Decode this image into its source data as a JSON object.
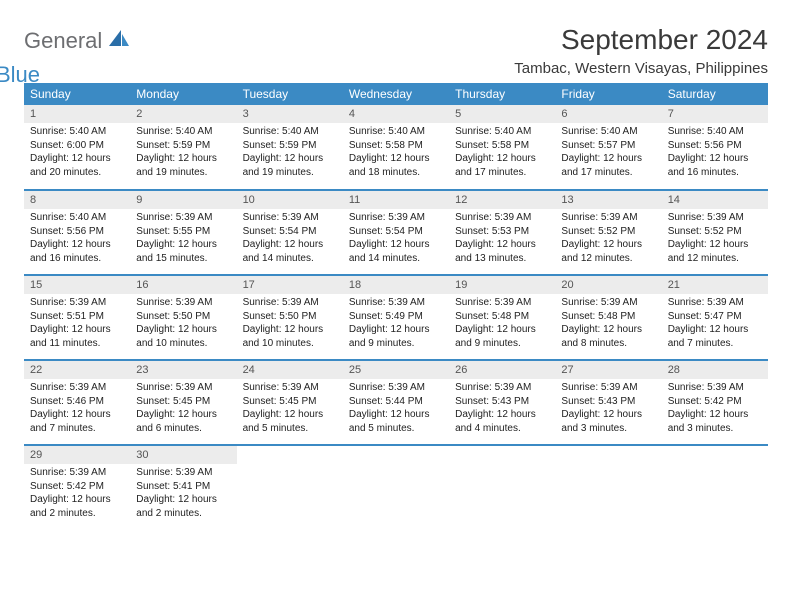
{
  "logo": {
    "word1": "General",
    "word2": "Blue"
  },
  "title": "September 2024",
  "location": "Tambac, Western Visayas, Philippines",
  "colors": {
    "header_bg": "#3b8ac4",
    "header_text": "#ffffff",
    "daynum_bg": "#ececec",
    "daynum_text": "#555555",
    "border": "#3b8ac4",
    "title_text": "#3a3a3a",
    "logo_gray": "#6d6e71",
    "logo_blue": "#3b8ac4"
  },
  "weekdays": [
    "Sunday",
    "Monday",
    "Tuesday",
    "Wednesday",
    "Thursday",
    "Friday",
    "Saturday"
  ],
  "weeks": [
    [
      {
        "n": "1",
        "sunrise": "5:40 AM",
        "sunset": "6:00 PM",
        "dl": "12 hours and 20 minutes."
      },
      {
        "n": "2",
        "sunrise": "5:40 AM",
        "sunset": "5:59 PM",
        "dl": "12 hours and 19 minutes."
      },
      {
        "n": "3",
        "sunrise": "5:40 AM",
        "sunset": "5:59 PM",
        "dl": "12 hours and 19 minutes."
      },
      {
        "n": "4",
        "sunrise": "5:40 AM",
        "sunset": "5:58 PM",
        "dl": "12 hours and 18 minutes."
      },
      {
        "n": "5",
        "sunrise": "5:40 AM",
        "sunset": "5:58 PM",
        "dl": "12 hours and 17 minutes."
      },
      {
        "n": "6",
        "sunrise": "5:40 AM",
        "sunset": "5:57 PM",
        "dl": "12 hours and 17 minutes."
      },
      {
        "n": "7",
        "sunrise": "5:40 AM",
        "sunset": "5:56 PM",
        "dl": "12 hours and 16 minutes."
      }
    ],
    [
      {
        "n": "8",
        "sunrise": "5:40 AM",
        "sunset": "5:56 PM",
        "dl": "12 hours and 16 minutes."
      },
      {
        "n": "9",
        "sunrise": "5:39 AM",
        "sunset": "5:55 PM",
        "dl": "12 hours and 15 minutes."
      },
      {
        "n": "10",
        "sunrise": "5:39 AM",
        "sunset": "5:54 PM",
        "dl": "12 hours and 14 minutes."
      },
      {
        "n": "11",
        "sunrise": "5:39 AM",
        "sunset": "5:54 PM",
        "dl": "12 hours and 14 minutes."
      },
      {
        "n": "12",
        "sunrise": "5:39 AM",
        "sunset": "5:53 PM",
        "dl": "12 hours and 13 minutes."
      },
      {
        "n": "13",
        "sunrise": "5:39 AM",
        "sunset": "5:52 PM",
        "dl": "12 hours and 12 minutes."
      },
      {
        "n": "14",
        "sunrise": "5:39 AM",
        "sunset": "5:52 PM",
        "dl": "12 hours and 12 minutes."
      }
    ],
    [
      {
        "n": "15",
        "sunrise": "5:39 AM",
        "sunset": "5:51 PM",
        "dl": "12 hours and 11 minutes."
      },
      {
        "n": "16",
        "sunrise": "5:39 AM",
        "sunset": "5:50 PM",
        "dl": "12 hours and 10 minutes."
      },
      {
        "n": "17",
        "sunrise": "5:39 AM",
        "sunset": "5:50 PM",
        "dl": "12 hours and 10 minutes."
      },
      {
        "n": "18",
        "sunrise": "5:39 AM",
        "sunset": "5:49 PM",
        "dl": "12 hours and 9 minutes."
      },
      {
        "n": "19",
        "sunrise": "5:39 AM",
        "sunset": "5:48 PM",
        "dl": "12 hours and 9 minutes."
      },
      {
        "n": "20",
        "sunrise": "5:39 AM",
        "sunset": "5:48 PM",
        "dl": "12 hours and 8 minutes."
      },
      {
        "n": "21",
        "sunrise": "5:39 AM",
        "sunset": "5:47 PM",
        "dl": "12 hours and 7 minutes."
      }
    ],
    [
      {
        "n": "22",
        "sunrise": "5:39 AM",
        "sunset": "5:46 PM",
        "dl": "12 hours and 7 minutes."
      },
      {
        "n": "23",
        "sunrise": "5:39 AM",
        "sunset": "5:45 PM",
        "dl": "12 hours and 6 minutes."
      },
      {
        "n": "24",
        "sunrise": "5:39 AM",
        "sunset": "5:45 PM",
        "dl": "12 hours and 5 minutes."
      },
      {
        "n": "25",
        "sunrise": "5:39 AM",
        "sunset": "5:44 PM",
        "dl": "12 hours and 5 minutes."
      },
      {
        "n": "26",
        "sunrise": "5:39 AM",
        "sunset": "5:43 PM",
        "dl": "12 hours and 4 minutes."
      },
      {
        "n": "27",
        "sunrise": "5:39 AM",
        "sunset": "5:43 PM",
        "dl": "12 hours and 3 minutes."
      },
      {
        "n": "28",
        "sunrise": "5:39 AM",
        "sunset": "5:42 PM",
        "dl": "12 hours and 3 minutes."
      }
    ],
    [
      {
        "n": "29",
        "sunrise": "5:39 AM",
        "sunset": "5:42 PM",
        "dl": "12 hours and 2 minutes."
      },
      {
        "n": "30",
        "sunrise": "5:39 AM",
        "sunset": "5:41 PM",
        "dl": "12 hours and 2 minutes."
      },
      null,
      null,
      null,
      null,
      null
    ]
  ],
  "labels": {
    "sunrise": "Sunrise: ",
    "sunset": "Sunset: ",
    "daylight": "Daylight: "
  }
}
